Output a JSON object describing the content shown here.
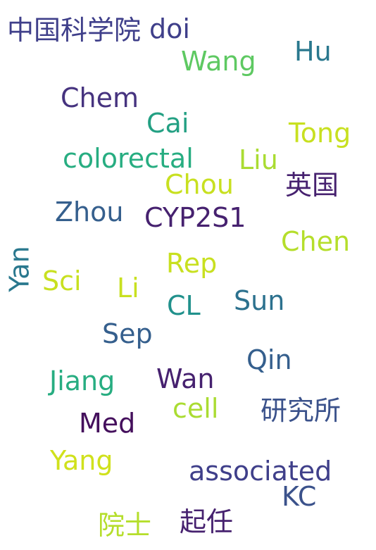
{
  "palette": {
    "dark_purple": "#46216f",
    "indigo": "#3f3f8a",
    "blue": "#355f8d",
    "teal_blue": "#2a788e",
    "teal": "#21918c",
    "green_teal": "#27ad81",
    "green": "#5ec962",
    "yellow_green": "#aadc32",
    "yellow": "#c8e020"
  },
  "words": [
    {
      "text": "中国科学院",
      "color": "#3f3f8a"
    },
    {
      "text": "doi",
      "color": "#3f3f8a"
    },
    {
      "text": "Hu",
      "color": "#2a788e"
    },
    {
      "text": "Wang",
      "color": "#5ec962"
    },
    {
      "text": "Chem",
      "color": "#46337f"
    },
    {
      "text": "Cai",
      "color": "#23a083"
    },
    {
      "text": "Tong",
      "color": "#c8e020"
    },
    {
      "text": "colorectal",
      "color": "#27ad81"
    },
    {
      "text": "Liu",
      "color": "#aadc32"
    },
    {
      "text": "英国",
      "color": "#46216f"
    },
    {
      "text": "Chou",
      "color": "#c8e020"
    },
    {
      "text": "Zhou",
      "color": "#355f8d"
    },
    {
      "text": "CYP2S1",
      "color": "#46216f"
    },
    {
      "text": "Chen",
      "color": "#b5de2b"
    },
    {
      "text": "Yan",
      "color": "#2a788e"
    },
    {
      "text": "Rep",
      "color": "#c8e020"
    },
    {
      "text": "Sci",
      "color": "#c8e020"
    },
    {
      "text": "Li",
      "color": "#c8e020"
    },
    {
      "text": "CL",
      "color": "#21918c"
    },
    {
      "text": "Sun",
      "color": "#2c718e"
    },
    {
      "text": "Sep",
      "color": "#355f8d"
    },
    {
      "text": "Qin",
      "color": "#355f8d"
    },
    {
      "text": "Jiang",
      "color": "#27ad81"
    },
    {
      "text": "Wan",
      "color": "#46216f"
    },
    {
      "text": "cell",
      "color": "#aadc32"
    },
    {
      "text": "研究所",
      "color": "#3b528b"
    },
    {
      "text": "Med",
      "color": "#440f5c"
    },
    {
      "text": "Yang",
      "color": "#d0e11c"
    },
    {
      "text": "associated",
      "color": "#3f3f8a"
    },
    {
      "text": "KC",
      "color": "#3b528b"
    },
    {
      "text": "院士",
      "color": "#b5de2b"
    },
    {
      "text": "起任",
      "color": "#46216f"
    }
  ]
}
